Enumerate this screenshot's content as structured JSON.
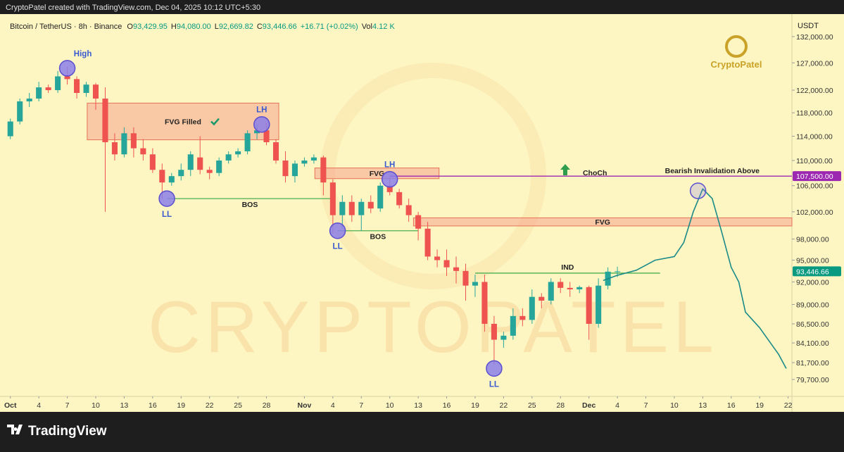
{
  "header": "CryptoPatel created with TradingView.com, Dec 04, 2025 10:12 UTC+5:30",
  "footer": "TradingView",
  "chart_data": {
    "type": "candlestick",
    "symbol": "Bitcoin / TetherUS · 8h · Binance",
    "ohlc": [
      {
        "key": "O",
        "value": "93,429.95"
      },
      {
        "key": "H",
        "value": "94,080.00"
      },
      {
        "key": "L",
        "value": "92,669.82"
      },
      {
        "key": "C",
        "value": "93,446.66"
      }
    ],
    "change": "+16.71 (+0.02%)",
    "volume": {
      "key": "Vol",
      "value": "4.12 K"
    },
    "currency": "USDT",
    "logo": "CryptoPatel",
    "watermark": "CRYPTOPATEL",
    "log_scale": true,
    "up_color": "#26a69a",
    "down_color": "#ef5350",
    "xlim": [
      -0.5,
      82.4
    ],
    "ylim": [
      77740,
      136450
    ],
    "xticks": [
      {
        "value": 0,
        "label": "Oct"
      },
      {
        "value": 3,
        "label": "4"
      },
      {
        "value": 6,
        "label": "7"
      },
      {
        "value": 9,
        "label": "10"
      },
      {
        "value": 12,
        "label": "13"
      },
      {
        "value": 15,
        "label": "16"
      },
      {
        "value": 18,
        "label": "19"
      },
      {
        "value": 21,
        "label": "22"
      },
      {
        "value": 24,
        "label": "25"
      },
      {
        "value": 27,
        "label": "28"
      },
      {
        "value": 31,
        "label": "Nov"
      },
      {
        "value": 34,
        "label": "4"
      },
      {
        "value": 37,
        "label": "7"
      },
      {
        "value": 40,
        "label": "10"
      },
      {
        "value": 43,
        "label": "13"
      },
      {
        "value": 46,
        "label": "16"
      },
      {
        "value": 49,
        "label": "19"
      },
      {
        "value": 52,
        "label": "22"
      },
      {
        "value": 55,
        "label": "25"
      },
      {
        "value": 58,
        "label": "28"
      },
      {
        "value": 61,
        "label": "Dec"
      },
      {
        "value": 64,
        "label": "4"
      },
      {
        "value": 67,
        "label": "7"
      },
      {
        "value": 70,
        "label": "10"
      },
      {
        "value": 73,
        "label": "13"
      },
      {
        "value": 76,
        "label": "16"
      },
      {
        "value": 79,
        "label": "19"
      },
      {
        "value": 82,
        "label": "22"
      }
    ],
    "yticks": [
      {
        "value": 132000,
        "label": "132,000.00"
      },
      {
        "value": 127000,
        "label": "127,000.00"
      },
      {
        "value": 122000,
        "label": "122,000.00"
      },
      {
        "value": 118000,
        "label": "118,000.00"
      },
      {
        "value": 114000,
        "label": "114,000.00"
      },
      {
        "value": 110000,
        "label": "110,000.00"
      },
      {
        "value": 106000,
        "label": "106,000.00"
      },
      {
        "value": 102000,
        "label": "102,000.00"
      },
      {
        "value": 98000,
        "label": "98,000.00"
      },
      {
        "value": 95000,
        "label": "95,000.00"
      },
      {
        "value": 92000,
        "label": "92,000.00"
      },
      {
        "value": 89000,
        "label": "89,000.00"
      },
      {
        "value": 86500,
        "label": "86,500.00"
      },
      {
        "value": 84100,
        "label": "84,100.00"
      },
      {
        "value": 81700,
        "label": "81,700.00"
      },
      {
        "value": 79700,
        "label": "79,700.00"
      }
    ],
    "open": [
      114000,
      116500,
      120000,
      120500,
      122500,
      122000,
      124500,
      124000,
      121500,
      123000,
      120500,
      113000,
      111000,
      114500,
      112000,
      111000,
      108500,
      106500,
      107500,
      108500,
      110500,
      108500,
      108000,
      110000,
      111000,
      111500,
      114500,
      115000,
      113000,
      110000,
      107500,
      109500,
      110000,
      110500,
      106500,
      101500,
      103500,
      101500,
      103500,
      102500,
      106000,
      105000,
      103000,
      101500,
      99500,
      95500,
      95000,
      94000,
      93500,
      91500,
      92000,
      86500,
      84500,
      85000,
      87500,
      87000,
      90000,
      89500,
      92000,
      91200,
      91000,
      91300,
      86500,
      91500,
      93400
    ],
    "high": [
      117000,
      120500,
      121500,
      123500,
      123000,
      125500,
      126300,
      124500,
      123500,
      123300,
      122500,
      114500,
      115500,
      115500,
      113500,
      112000,
      109500,
      108000,
      109500,
      111500,
      114000,
      109000,
      110500,
      111500,
      112000,
      115000,
      116000,
      116300,
      113500,
      111500,
      110000,
      110500,
      111000,
      110800,
      107000,
      104500,
      104500,
      104000,
      104500,
      106500,
      107300,
      105500,
      104000,
      102000,
      100500,
      96500,
      96500,
      95500,
      94500,
      93000,
      93000,
      87500,
      85500,
      88500,
      88500,
      91000,
      90500,
      92500,
      92500,
      92000,
      91500,
      91500,
      92500,
      94000,
      94080
    ],
    "low": [
      113500,
      116000,
      119000,
      120000,
      121500,
      121500,
      123000,
      120500,
      120800,
      118500,
      102000,
      110000,
      110500,
      110500,
      110000,
      108000,
      104000,
      106000,
      106800,
      107500,
      107800,
      107000,
      107500,
      109500,
      110500,
      111000,
      113500,
      112500,
      109500,
      106500,
      106500,
      109000,
      109500,
      104500,
      98800,
      99500,
      100500,
      99200,
      101800,
      102000,
      104500,
      102500,
      100500,
      97800,
      95000,
      94000,
      92800,
      91800,
      89500,
      90000,
      85500,
      81500,
      83500,
      84500,
      86200,
      86500,
      88500,
      89000,
      90500,
      90000,
      90500,
      84500,
      86000,
      91000,
      92669.82
    ],
    "close": [
      116500,
      120000,
      120500,
      122500,
      122000,
      124500,
      124000,
      121500,
      123000,
      120500,
      113000,
      111000,
      114500,
      112000,
      111000,
      108500,
      106500,
      107500,
      108500,
      111000,
      108500,
      108000,
      110000,
      111000,
      111500,
      114500,
      115000,
      113000,
      110000,
      107500,
      109500,
      110000,
      110500,
      106500,
      101500,
      103500,
      101500,
      103500,
      102500,
      106000,
      105000,
      103000,
      101500,
      99500,
      95500,
      95000,
      94000,
      93500,
      91500,
      92000,
      86500,
      84500,
      85000,
      87500,
      87000,
      90000,
      89500,
      92000,
      91200,
      91000,
      91300,
      86500,
      91500,
      93400,
      93446.66
    ],
    "price_tags": [
      {
        "value": 107500,
        "label": "107,500.00",
        "color": "#9c27b0"
      },
      {
        "value": 93446.66,
        "label": "93,446.66",
        "color": "#089981"
      }
    ],
    "zones": [
      {
        "label": "FVG Filled",
        "x": [
          8.1,
          28.3
        ],
        "y": [
          113400,
          119700
        ]
      },
      {
        "label": "FVG",
        "x": [
          32.1,
          45.2
        ],
        "y": [
          107100,
          108800
        ]
      },
      {
        "label": "FVG",
        "x": [
          42.5,
          82.4
        ],
        "y": [
          99900,
          101100
        ]
      }
    ],
    "levels": [
      {
        "label": "BOS",
        "x": [
          16.5,
          34
        ],
        "y": 104000,
        "color": "#4caf50"
      },
      {
        "label": "BOS",
        "x": [
          34.5,
          43
        ],
        "y": 99200,
        "color": "#4caf50"
      },
      {
        "label": "IND",
        "x": [
          49,
          68.5
        ],
        "y": 93200,
        "color": "#4caf50"
      },
      {
        "label": "Bearish Invalidation Above",
        "x": [
          40,
          82.4
        ],
        "y": 107500,
        "color": "#9c27b0"
      }
    ],
    "points": [
      {
        "label": "High",
        "x": 6,
        "y": 126000,
        "pos": "above"
      },
      {
        "label": "LL",
        "x": 16.5,
        "y": 104000,
        "pos": "below"
      },
      {
        "label": "LH",
        "x": 26.5,
        "y": 116000,
        "pos": "above"
      },
      {
        "label": "LL",
        "x": 34.5,
        "y": 99200,
        "pos": "below"
      },
      {
        "label": "LH",
        "x": 40,
        "y": 107000,
        "pos": "above"
      },
      {
        "label": "LL",
        "x": 51,
        "y": 81000,
        "pos": "below"
      },
      {
        "label": null,
        "x": 72.5,
        "y": 105200,
        "pos": "above"
      }
    ],
    "choch": {
      "label": "ChoCh",
      "x": 58.5,
      "y": 108300
    },
    "projection": {
      "color": "#1a8a88",
      "x": [
        62.5,
        64,
        66,
        68,
        70,
        71,
        72,
        73,
        74,
        75,
        76,
        76.8,
        77.5,
        79,
        81,
        81.8
      ],
      "y": [
        92200,
        92900,
        93600,
        95000,
        95500,
        97500,
        102000,
        105500,
        104000,
        99000,
        94000,
        92000,
        88000,
        86000,
        82700,
        81000
      ]
    }
  }
}
